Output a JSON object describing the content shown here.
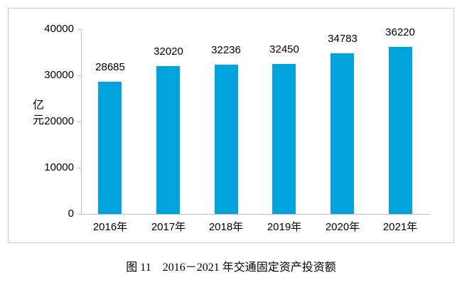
{
  "chart_data": {
    "type": "bar",
    "caption": "图 11　2016－2021 年交通固定资产投资额",
    "ylabel": "亿元",
    "categories": [
      "2016年",
      "2017年",
      "2018年",
      "2019年",
      "2020年",
      "2021年"
    ],
    "values": [
      28685,
      32020,
      32236,
      32450,
      34783,
      36220
    ],
    "data_labels": [
      "28685",
      "32020",
      "32236",
      "32450",
      "34783",
      "36220"
    ],
    "ytick_labels": [
      "0",
      "10000",
      "20000",
      "30000",
      "40000"
    ],
    "yticks": [
      0,
      10000,
      20000,
      30000,
      40000
    ],
    "ylim": [
      0,
      40000
    ],
    "grid": false,
    "legend": "none",
    "bar_color": "#00a3dc",
    "axis_color": "#bfbfbf",
    "frame_border_color": "#c9c9c9",
    "text_color": "#000000"
  }
}
